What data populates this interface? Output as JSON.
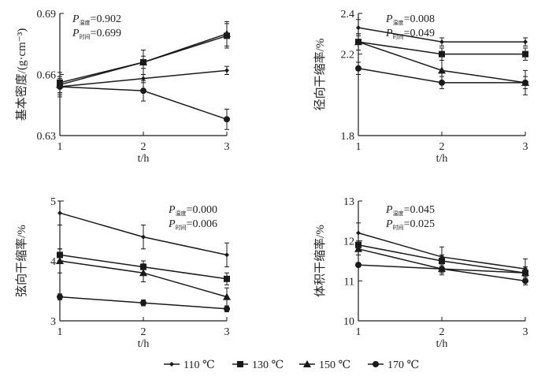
{
  "chart_data": [
    {
      "type": "line",
      "ylabel": "基本密度/(g·cm⁻³)",
      "xlabel": "t/h",
      "x": [
        1,
        2,
        3
      ],
      "ylim": [
        0.63,
        0.69
      ],
      "yticks": [
        "0.63",
        "0.66",
        "0.69"
      ],
      "p_temp": "=0.902",
      "p_time": "=0.699",
      "series": [
        {
          "name": "110 ℃",
          "values": [
            0.654,
            0.658,
            0.662
          ],
          "error": [
            0.004,
            0.002,
            0.002
          ]
        },
        {
          "name": "130 ℃",
          "values": [
            0.656,
            0.666,
            0.679
          ],
          "error": [
            0.005,
            0.006,
            0.006
          ]
        },
        {
          "name": "150 ℃",
          "values": [
            0.655,
            0.666,
            0.68
          ],
          "error": [
            0.004,
            0.003,
            0.006
          ]
        },
        {
          "name": "170 ℃",
          "values": [
            0.654,
            0.652,
            0.638
          ],
          "error": [
            0.005,
            0.005,
            0.005
          ]
        }
      ]
    },
    {
      "type": "line",
      "ylabel": "径向干缩率/%",
      "xlabel": "t/h",
      "x": [
        1,
        2,
        3
      ],
      "ylim": [
        1.8,
        2.4
      ],
      "yticks": [
        "1.8",
        "2.2",
        "2.4"
      ],
      "p_temp": "=0.008",
      "p_time": "=0.049",
      "series": [
        {
          "name": "110 ℃",
          "values": [
            2.33,
            2.26,
            2.26
          ],
          "error": [
            0.04,
            0.02,
            0.02
          ]
        },
        {
          "name": "130 ℃",
          "values": [
            2.26,
            2.2,
            2.2
          ],
          "error": [
            0.04,
            0.03,
            0.03
          ]
        },
        {
          "name": "150 ℃",
          "values": [
            2.26,
            2.12,
            2.06
          ],
          "error": [
            0.04,
            0.07,
            0.06
          ]
        },
        {
          "name": "170 ℃",
          "values": [
            2.13,
            2.06,
            2.06
          ],
          "error": [
            0.03,
            0.03,
            0.03
          ]
        }
      ]
    },
    {
      "type": "line",
      "ylabel": "弦向干缩率/%",
      "xlabel": "t/h",
      "x": [
        1,
        2,
        3
      ],
      "ylim": [
        3,
        5
      ],
      "yticks": [
        "3",
        "4",
        "5"
      ],
      "p_temp": "=0.000",
      "p_time": "=0.006",
      "series": [
        {
          "name": "110 ℃",
          "values": [
            4.8,
            4.4,
            4.1
          ],
          "error": [
            0.2,
            0.2,
            0.2
          ]
        },
        {
          "name": "130 ℃",
          "values": [
            4.1,
            3.9,
            3.7
          ],
          "error": [
            0.1,
            0.1,
            0.1
          ]
        },
        {
          "name": "150 ℃",
          "values": [
            4.0,
            3.8,
            3.4
          ],
          "error": [
            0.2,
            0.15,
            0.15
          ]
        },
        {
          "name": "170 ℃",
          "values": [
            3.4,
            3.3,
            3.2
          ],
          "error": [
            0.05,
            0.05,
            0.05
          ]
        }
      ]
    },
    {
      "type": "line",
      "ylabel": "体积干缩率/%",
      "xlabel": "t/h",
      "x": [
        1,
        2,
        3
      ],
      "ylim": [
        10,
        13
      ],
      "yticks": [
        "10",
        "11",
        "12",
        "13"
      ],
      "p_temp": "=0.045",
      "p_time": "=0.025",
      "series": [
        {
          "name": "110 ℃",
          "values": [
            12.2,
            11.6,
            11.3
          ],
          "error": [
            0.25,
            0.25,
            0.25
          ]
        },
        {
          "name": "130 ℃",
          "values": [
            11.9,
            11.5,
            11.2
          ],
          "error": [
            0.1,
            0.15,
            0.15
          ]
        },
        {
          "name": "150 ℃",
          "values": [
            11.8,
            11.3,
            11.2
          ],
          "error": [
            0.15,
            0.15,
            0.15
          ]
        },
        {
          "name": "170 ℃",
          "values": [
            11.4,
            11.3,
            11.0
          ],
          "error": [
            0.05,
            0.1,
            0.1
          ]
        }
      ]
    }
  ],
  "p_labels": {
    "symbol": "P",
    "temp_sub": "温度",
    "time_sub": "时间"
  },
  "legend": {
    "placement": "bottom",
    "items": [
      {
        "label": "110 ℃",
        "marker": "diamond"
      },
      {
        "label": "130 ℃",
        "marker": "square"
      },
      {
        "label": "150 ℃",
        "marker": "triangle"
      },
      {
        "label": "170 ℃",
        "marker": "circle"
      }
    ]
  },
  "colors": {
    "line": "#1a1a1a"
  }
}
